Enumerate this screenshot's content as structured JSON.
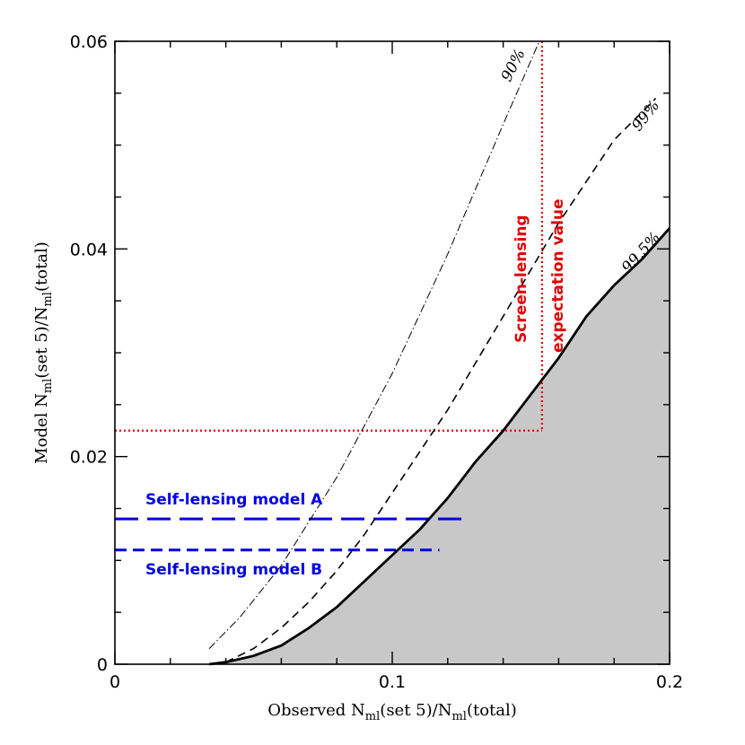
{
  "chart_data": {
    "type": "line",
    "xlabel": {
      "pre": "Observed N",
      "sub1": "ml",
      "mid": "(set 5)/N",
      "sub2": "ml",
      "post": "(total)"
    },
    "ylabel": {
      "pre": "Model N",
      "sub1": "ml",
      "mid": "(set 5)/N",
      "sub2": "ml",
      "post": "(total)"
    },
    "xlim": [
      0,
      0.2
    ],
    "ylim": [
      0,
      0.06
    ],
    "xticks": [
      0,
      0.1,
      0.2
    ],
    "xtick_labels": [
      "0",
      "0.1",
      "0.2"
    ],
    "yticks": [
      0,
      0.02,
      0.04,
      0.06
    ],
    "ytick_labels": [
      "0",
      "0.02",
      "0.04",
      "0.06"
    ],
    "series": [
      {
        "label": "90%",
        "style": "dash-dot",
        "x": [
          0.034,
          0.045,
          0.06,
          0.08,
          0.1,
          0.12,
          0.14,
          0.153
        ],
        "y": [
          0.0015,
          0.0045,
          0.0095,
          0.018,
          0.028,
          0.0395,
          0.052,
          0.06
        ]
      },
      {
        "label": "99%",
        "style": "dashed",
        "x": [
          0.04,
          0.05,
          0.06,
          0.07,
          0.08,
          0.09,
          0.1,
          0.12,
          0.14,
          0.16,
          0.18,
          0.195
        ],
        "y": [
          0.0002,
          0.0015,
          0.0035,
          0.006,
          0.009,
          0.0125,
          0.0165,
          0.0245,
          0.0335,
          0.0425,
          0.0505,
          0.0545
        ]
      },
      {
        "label": "99.5%",
        "style": "solid",
        "x": [
          0.034,
          0.04,
          0.05,
          0.06,
          0.07,
          0.08,
          0.09,
          0.1,
          0.11,
          0.12,
          0.13,
          0.14,
          0.15,
          0.16,
          0.17,
          0.18,
          0.19,
          0.2
        ],
        "y": [
          0.0,
          0.0002,
          0.0008,
          0.0018,
          0.0035,
          0.0055,
          0.008,
          0.0105,
          0.013,
          0.016,
          0.0195,
          0.0225,
          0.026,
          0.0295,
          0.0335,
          0.0365,
          0.039,
          0.042
        ]
      }
    ],
    "shaded_region": "below 99.5% curve",
    "annotations": {
      "red_vertical_x": 0.154,
      "red_horizontal_y": 0.0225,
      "red_label_1": "Screen-lensing",
      "red_label_2": "expectation value",
      "model_a_y": 0.014,
      "model_a_label": "Self-lensing model A",
      "model_b_y": 0.011,
      "model_b_label": "Self-lensing model B"
    }
  },
  "colors": {
    "red": "#e00000",
    "blue": "#0000e6",
    "shade": "#c8c8c8"
  }
}
